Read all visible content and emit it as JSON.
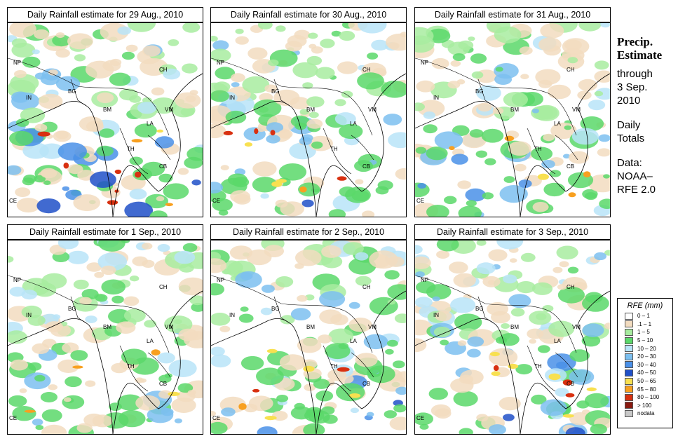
{
  "panels": [
    {
      "title": "Daily Rainfall estimate for  29 Aug., 2010",
      "intensity": 0.9
    },
    {
      "title": "Daily Rainfall estimate for  30 Aug., 2010",
      "intensity": 0.75
    },
    {
      "title": "Daily Rainfall estimate for  31 Aug., 2010",
      "intensity": 0.45
    },
    {
      "title": "Daily Rainfall estimate for  1 Sep., 2010",
      "intensity": 0.4
    },
    {
      "title": "Daily Rainfall estimate for  2 Sep., 2010",
      "intensity": 0.7
    },
    {
      "title": "Daily Rainfall estimate for  3 Sep., 2010",
      "intensity": 0.85
    }
  ],
  "map_labels": {
    "np": "NP",
    "ch": "CH",
    "in": "IN",
    "bg": "BG",
    "bm": "BM",
    "vm": "VM",
    "la": "LA",
    "th": "TH",
    "cb": "CB",
    "ce": "CE"
  },
  "side": {
    "title1": "Precip.",
    "title2": "Estimate",
    "through": "through",
    "date1": "3 Sep.",
    "date2": "2010",
    "daily1": "Daily",
    "daily2": "Totals",
    "data1": "Data:",
    "data2": "NOAA–",
    "data3": "RFE 2.0"
  },
  "legend": {
    "title": "RFE (mm)",
    "items": [
      {
        "label": "0 – 1",
        "color": "#ffffff"
      },
      {
        "label": ".1 – 1",
        "color": "#f2dcc0"
      },
      {
        "label": "1 – 5",
        "color": "#a8eca0"
      },
      {
        "label": "5 – 10",
        "color": "#5ad86a"
      },
      {
        "label": "10 – 20",
        "color": "#b8e4f8"
      },
      {
        "label": "20 – 30",
        "color": "#7cc0f0"
      },
      {
        "label": "30 – 40",
        "color": "#4a90e8"
      },
      {
        "label": "40 – 50",
        "color": "#2050c8"
      },
      {
        "label": "50 – 65",
        "color": "#f8e050"
      },
      {
        "label": "65 – 80",
        "color": "#f8a020"
      },
      {
        "label": "80 – 100",
        "color": "#d83010"
      },
      {
        "label": "> 100",
        "color": "#8a1a10"
      },
      {
        "label": "nodata",
        "color": "#c8c8c8"
      }
    ]
  }
}
